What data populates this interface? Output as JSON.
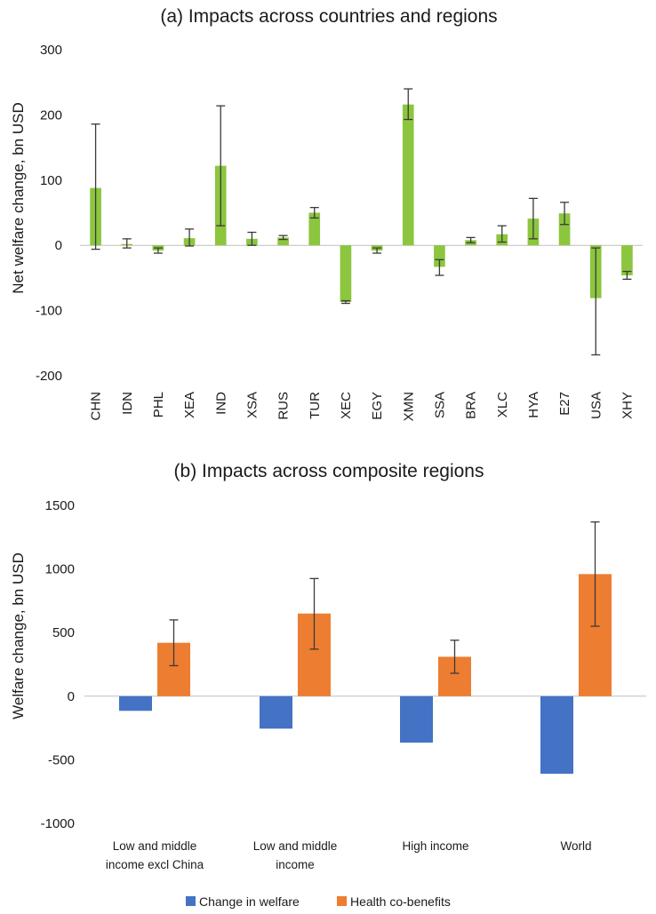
{
  "chart_data": [
    {
      "type": "bar",
      "title": "(a) Impacts across countries and regions",
      "ylabel": "Net welfare change, bn USD",
      "xlabel": "",
      "ylim": [
        -200,
        300
      ],
      "yticks": [
        300,
        200,
        100,
        0,
        -100,
        -200
      ],
      "grid": false,
      "color": "#8cc63e",
      "categories": [
        "CHN",
        "IDN",
        "PHL",
        "XEA",
        "IND",
        "XSA",
        "RUS",
        "TUR",
        "XEC",
        "EGY",
        "XMN",
        "SSA",
        "BRA",
        "XLC",
        "HYA",
        "E27",
        "USA",
        "XHY"
      ],
      "values": [
        88,
        2,
        -8,
        11,
        122,
        10,
        12,
        50,
        -87,
        -8,
        216,
        -33,
        8,
        17,
        41,
        49,
        -81,
        -46
      ],
      "error_low": [
        -6,
        -4,
        -12,
        -1,
        30,
        0,
        9,
        42,
        -89,
        -12,
        193,
        -46,
        4,
        5,
        10,
        32,
        -168,
        -52
      ],
      "error_high": [
        186,
        10,
        -4,
        25,
        214,
        20,
        15,
        58,
        -85,
        -4,
        240,
        -22,
        12,
        30,
        72,
        66,
        -4,
        -40
      ]
    },
    {
      "type": "bar",
      "title": "(b) Impacts across composite regions",
      "ylabel": "Welfare change, bn USD",
      "xlabel": "",
      "ylim": [
        -1000,
        1500
      ],
      "yticks": [
        1500,
        1000,
        500,
        0,
        -500,
        -1000
      ],
      "grid": false,
      "legend": "bottom",
      "categories": [
        [
          "Low and middle",
          "income excl China"
        ],
        [
          "Low and middle",
          "income"
        ],
        [
          "High income"
        ],
        [
          "World"
        ]
      ],
      "series": [
        {
          "name": "Change in welfare",
          "color": "#4472c4",
          "values": [
            -115,
            -255,
            -365,
            -610
          ]
        },
        {
          "name": "Health co-benefits",
          "color": "#ed7d31",
          "values": [
            420,
            650,
            310,
            960
          ],
          "error_low": [
            240,
            370,
            180,
            550
          ],
          "error_high": [
            600,
            925,
            440,
            1370
          ]
        }
      ]
    }
  ]
}
